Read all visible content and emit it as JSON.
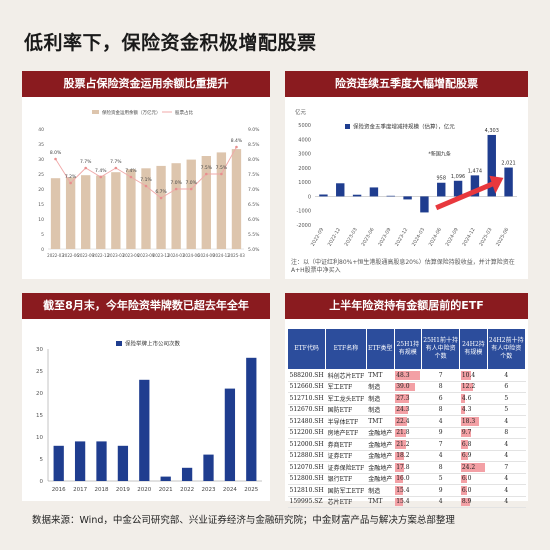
{
  "title": "低利率下，保险资金积极增配股票",
  "source": "数据来源：Wind，中金公司研究部、兴业证券经济与金融研究院；中金财富产品与解决方案总部整理",
  "panels": {
    "p1": "股票占保险资金运用余额比重提升",
    "p2": "险资连续五季度大幅增配股票",
    "p3": "截至8月末，今年险资举牌数已超去年全年",
    "p4": "上半年险资持有金额居前的ETF"
  },
  "chart_data": [
    {
      "type": "bar",
      "legend": [
        "保险资金运用余额（万亿元）",
        "股票占比"
      ],
      "categories": [
        "2022-03",
        "2022-06",
        "2022-09",
        "2022-12",
        "2023-03",
        "2023-06",
        "2023-09",
        "2023-12",
        "2024-03",
        "2024-06",
        "2024-09",
        "2024-12",
        "2025-03"
      ],
      "series": [
        {
          "name": "保险资金运用余额（万亿元）",
          "values": [
            23.6,
            23.9,
            24.6,
            24.5,
            25.6,
            26.6,
            26.9,
            27.7,
            28.6,
            29.8,
            31.0,
            32.2,
            33.3
          ]
        },
        {
          "name": "股票占比",
          "values": [
            8.0,
            7.2,
            7.7,
            7.4,
            7.7,
            7.4,
            7.1,
            6.7,
            7.0,
            7.0,
            7.5,
            7.5,
            8.4
          ]
        }
      ],
      "data_labels": [
        "8.0%",
        "7.2%",
        "7.7%",
        "7.4%",
        "7.7%",
        "7.4%",
        "7.1%",
        "6.7%",
        "7.0%",
        "7.0%",
        "7.5%",
        "7.5%",
        "8.4%"
      ],
      "left_ticks": [
        "40",
        "35",
        "30",
        "25",
        "20",
        "15",
        "10",
        "5",
        "0"
      ],
      "right_ticks": [
        "9.0%",
        "8.5%",
        "8.0%",
        "7.5%",
        "7.0%",
        "6.5%",
        "6.0%",
        "5.5%",
        "5.0%"
      ],
      "ylim": [
        0,
        40
      ],
      "y2lim": [
        5.0,
        9.0
      ],
      "colors": {
        "bar": "#ddc5ad",
        "line": "#f0a8a8",
        "marker": "#e88e8e"
      }
    },
    {
      "type": "bar",
      "unit": "亿元",
      "legend": [
        "保险资金五季度增减持规模（估算），亿元"
      ],
      "annotation": "*新国九条",
      "categories": [
        "2022-09",
        "2022-12",
        "2023-03",
        "2023-06",
        "2023-09",
        "2023-12",
        "2024-03",
        "2024-06",
        "2024-09",
        "2024-12",
        "2025-03",
        "2025-06"
      ],
      "values": [
        135,
        920,
        120,
        630,
        45,
        -210,
        -1120,
        958,
        1096,
        1474,
        4303,
        2021
      ],
      "value_labels": [
        "",
        "",
        "",
        "",
        "",
        "",
        "",
        "958",
        "1,096",
        "1,474",
        "4,303",
        "2,021"
      ],
      "ticks": [
        "5000",
        "4000",
        "3000",
        "2000",
        "1000",
        "0",
        "-1000",
        "-2000"
      ],
      "ylim": [
        -2000,
        5000
      ],
      "note": "注：以（中证红利80%+恒生港股通高股息20%）估算保险持股收益，并计算险资在A+H股票中净买入",
      "colors": {
        "bar": "#1f3d8f",
        "arrow": "#e8383d"
      }
    },
    {
      "type": "bar",
      "legend": [
        "保险举牌上市公司次数"
      ],
      "categories": [
        "2016",
        "2017",
        "2018",
        "2019",
        "2020",
        "2021",
        "2022",
        "2023",
        "2024",
        "2025"
      ],
      "values": [
        8,
        9,
        9,
        8,
        23,
        1,
        3,
        6,
        21,
        28
      ],
      "ticks": [
        "30",
        "25",
        "20",
        "15",
        "10",
        "5",
        "0"
      ],
      "ylim": [
        0,
        30
      ],
      "colors": {
        "bar": "#1f3d8f"
      }
    },
    {
      "type": "table",
      "columns": [
        "ETF代码",
        "ETF名称",
        "ETF类型",
        "25H1持有规模",
        "25H1前十持有人中险资个数",
        "24H2持有规模",
        "24H2前十持有人中险资个数"
      ],
      "rows": [
        [
          "588200.SH",
          "科创芯片ETF",
          "TMT",
          "48.3",
          "7",
          "10.4",
          "4"
        ],
        [
          "512660.SH",
          "军工ETF",
          "制造",
          "39.0",
          "8",
          "12.2",
          "6"
        ],
        [
          "512710.SH",
          "军工龙头ETF",
          "制造",
          "27.3",
          "6",
          "4.6",
          "5"
        ],
        [
          "512670.SH",
          "国防ETF",
          "制造",
          "24.3",
          "8",
          "4.3",
          "5"
        ],
        [
          "512480.SH",
          "半导体ETF",
          "TMT",
          "22.4",
          "4",
          "18.3",
          "4"
        ],
        [
          "512200.SH",
          "房地产ETF",
          "金融地产",
          "21.8",
          "9",
          "9.7",
          "8"
        ],
        [
          "512000.SH",
          "券商ETF",
          "金融地产",
          "21.2",
          "7",
          "6.8",
          "4"
        ],
        [
          "512880.SH",
          "证券ETF",
          "金融地产",
          "18.2",
          "4",
          "6.9",
          "4"
        ],
        [
          "512070.SH",
          "证券保险ETF",
          "金融地产",
          "17.8",
          "8",
          "24.2",
          "7"
        ],
        [
          "512800.SH",
          "银行ETF",
          "金融地产",
          "16.0",
          "5",
          "6.0",
          "4"
        ],
        [
          "512810.SH",
          "国防军工ETF",
          "制造",
          "15.4",
          "9",
          "6.0",
          "4"
        ],
        [
          "159995.SZ",
          "芯片ETF",
          "TMT",
          "15.4",
          "4",
          "8.9",
          "4"
        ]
      ],
      "colors": {
        "header": "#2c4d9c",
        "bar": "#f3a0a5"
      }
    }
  ]
}
